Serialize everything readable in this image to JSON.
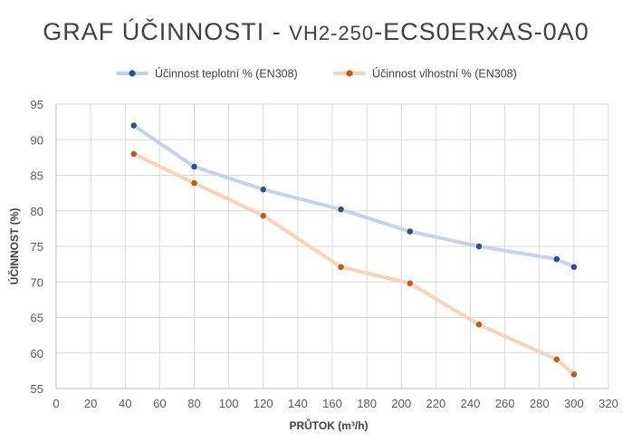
{
  "chart_data": {
    "type": "line",
    "title_parts": [
      "GRAF ÚČINNOSTI - ",
      "VH2-250",
      "-ECS0ERxAS-0A0"
    ],
    "xlabel": "PRŮTOK (m³/h)",
    "ylabel": "ÚČINNOST (%)",
    "xlim": [
      0,
      320
    ],
    "ylim": [
      55,
      95
    ],
    "x_ticks": [
      0,
      20,
      40,
      60,
      80,
      100,
      120,
      140,
      160,
      180,
      200,
      220,
      240,
      260,
      280,
      300,
      320
    ],
    "y_ticks": [
      55,
      60,
      65,
      70,
      75,
      80,
      85,
      90,
      95
    ],
    "grid": true,
    "legend_position": "top",
    "series": [
      {
        "name": "Účinnost teplotní % (EN308)",
        "line_color": "#c5d3ea",
        "marker_color": "#2e4e8f",
        "x": [
          45,
          80,
          120,
          165,
          205,
          245,
          290,
          300
        ],
        "y": [
          92,
          86.2,
          83,
          80.2,
          77.1,
          75,
          73.2,
          72.1
        ]
      },
      {
        "name": "Účinnost vlhostní % (EN308)",
        "line_color": "#f7d3b9",
        "marker_color": "#c55a11",
        "x": [
          45,
          80,
          120,
          165,
          205,
          245,
          290,
          300
        ],
        "y": [
          88,
          83.9,
          79.3,
          72.1,
          69.8,
          64,
          59.1,
          57
        ]
      }
    ]
  }
}
